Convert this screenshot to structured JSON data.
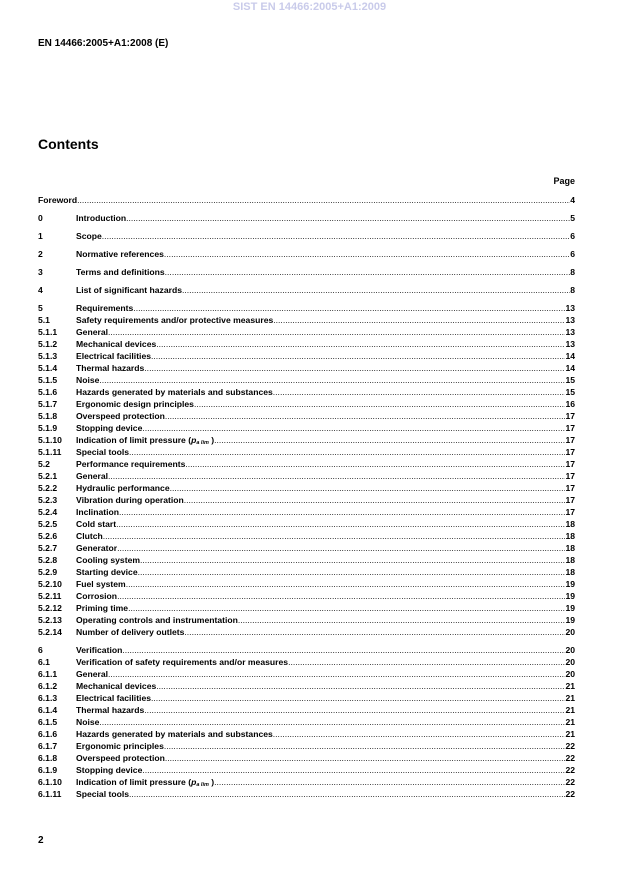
{
  "watermark": "SIST EN 14466:2005+A1:2009",
  "header": "EN 14466:2005+A1:2008 (E)",
  "title": "Contents",
  "page_label": "Page",
  "footer_page": "2",
  "entries": [
    {
      "num": "",
      "title": "Foreword",
      "page": "4"
    },
    {
      "num": "0",
      "title": "Introduction",
      "page": "5"
    },
    {
      "num": "1",
      "title": "Scope",
      "page": "6"
    },
    {
      "num": "2",
      "title": "Normative references",
      "page": "6"
    },
    {
      "num": "3",
      "title": "Terms and definitions",
      "page": "8"
    },
    {
      "num": "4",
      "title": "List of significant hazards",
      "page": "8"
    },
    {
      "num": "5",
      "title": "Requirements",
      "page": "13"
    },
    {
      "num": "5.1",
      "title": "Safety requirements and/or protective measures",
      "page": "13"
    },
    {
      "num": "5.1.1",
      "title": "General",
      "page": "13"
    },
    {
      "num": "5.1.2",
      "title": "Mechanical devices",
      "page": "13"
    },
    {
      "num": "5.1.3",
      "title": "Electrical facilities",
      "page": "14"
    },
    {
      "num": "5.1.4",
      "title": "Thermal hazards",
      "page": "14"
    },
    {
      "num": "5.1.5",
      "title": "Noise",
      "page": "15"
    },
    {
      "num": "5.1.6",
      "title": "Hazards generated by materials and substances",
      "page": "15"
    },
    {
      "num": "5.1.7",
      "title": "Ergonomic design principles",
      "page": "16"
    },
    {
      "num": "5.1.8",
      "title": "Overspeed protection",
      "page": "17"
    },
    {
      "num": "5.1.9",
      "title": "Stopping device",
      "page": "17"
    },
    {
      "num": "5.1.10",
      "title": "Indication of limit pressure (",
      "sym": "p",
      "sub": "a lim",
      "after": " )",
      "page": "17"
    },
    {
      "num": "5.1.11",
      "title": "Special tools",
      "page": "17"
    },
    {
      "num": "5.2",
      "title": "Performance requirements",
      "page": "17"
    },
    {
      "num": "5.2.1",
      "title": "General",
      "page": "17"
    },
    {
      "num": "5.2.2",
      "title": "Hydraulic performance",
      "page": "17"
    },
    {
      "num": "5.2.3",
      "title": "Vibration during operation",
      "page": "17"
    },
    {
      "num": "5.2.4",
      "title": "Inclination",
      "page": "17"
    },
    {
      "num": "5.2.5",
      "title": "Cold start",
      "page": "18"
    },
    {
      "num": "5.2.6",
      "title": "Clutch",
      "page": "18"
    },
    {
      "num": "5.2.7",
      "title": "Generator",
      "page": "18"
    },
    {
      "num": "5.2.8",
      "title": "Cooling system",
      "page": "18"
    },
    {
      "num": "5.2.9",
      "title": "Starting device",
      "page": "18"
    },
    {
      "num": "5.2.10",
      "title": "Fuel system",
      "page": "19"
    },
    {
      "num": "5.2.11",
      "title": "Corrosion",
      "page": "19"
    },
    {
      "num": "5.2.12",
      "title": "Priming time",
      "page": "19"
    },
    {
      "num": "5.2.13",
      "title": "Operating controls and instrumentation",
      "page": "19"
    },
    {
      "num": "5.2.14",
      "title": "Number of delivery outlets",
      "page": "20"
    },
    {
      "num": "6",
      "title": "Verification",
      "page": "20"
    },
    {
      "num": "6.1",
      "title": "Verification of safety requirements and/or measures",
      "page": "20"
    },
    {
      "num": "6.1.1",
      "title": "General",
      "page": "20"
    },
    {
      "num": "6.1.2",
      "title": "Mechanical devices",
      "page": "21"
    },
    {
      "num": "6.1.3",
      "title": "Electrical facilities",
      "page": "21"
    },
    {
      "num": "6.1.4",
      "title": "Thermal hazards",
      "page": "21"
    },
    {
      "num": "6.1.5",
      "title": "Noise",
      "page": "21"
    },
    {
      "num": "6.1.6",
      "title": "Hazards generated by materials and substances",
      "page": "21"
    },
    {
      "num": "6.1.7",
      "title": "Ergonomic principles",
      "page": "22"
    },
    {
      "num": "6.1.8",
      "title": "Overspeed protection",
      "page": "22"
    },
    {
      "num": "6.1.9",
      "title": "Stopping device",
      "page": "22"
    },
    {
      "num": "6.1.10",
      "title": "Indication of limit pressure (",
      "sym": "p",
      "sub": "a lim",
      "after": " )",
      "page": "22"
    },
    {
      "num": "6.1.11",
      "title": "Special tools",
      "page": "22"
    }
  ]
}
